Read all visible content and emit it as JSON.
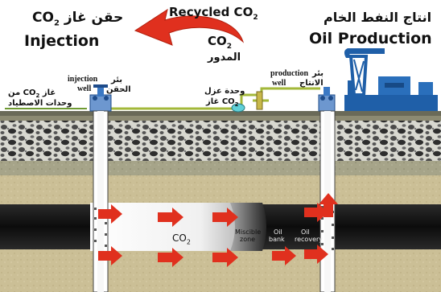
{
  "header": {
    "left_arabic": "حقن غاز CO",
    "left_arabic_sub": "2",
    "left_english": "Injection",
    "center_top": "Recycled CO",
    "center_top_sub": "2",
    "center_co2": "CO",
    "center_co2_sub": "2",
    "center_arabic": "المدور",
    "right_arabic": "انتاج النفط الخام",
    "right_english": "Oil Production"
  },
  "surface_labels": {
    "co2_source_ar1": "غاز CO",
    "co2_source_ar1_sub": "2",
    "co2_source_ar1_tail": " من",
    "co2_source_ar2": "وحدات الاصطياد",
    "injection_well_en1": "injection",
    "injection_well_en2": "well",
    "injection_well_ar1": "بئر",
    "injection_well_ar2": "الحقن",
    "separation_ar1": "وحدة عزل",
    "separation_ar2": "CO",
    "separation_ar2_sub": "2",
    "separation_ar2_tail": " غاز",
    "production_well_en1": "production",
    "production_well_en2": "well",
    "production_well_ar1": "بئر",
    "production_well_ar2": "الانتاج"
  },
  "reservoir_labels": {
    "co2": "CO",
    "co2_sub": "2",
    "miscible1": "Miscible",
    "miscible2": "zone",
    "oil_bank1": "Oil",
    "oil_bank2": "bank",
    "oil_recovery1": "Oil",
    "oil_recovery2": "recovery"
  },
  "colors": {
    "recycle_arrow": "#e0301e",
    "flow_arrow": "#e0301e",
    "pipe": "#a3b83a",
    "pump_jack": "#1f5fa8",
    "well_valve": "#3a78c4",
    "oil_formation": "#141414",
    "co2_zone": "#f4f4f4",
    "soil": "#9f9d82",
    "gravel": "#3c3c3c",
    "sand": "#c9bd93"
  }
}
